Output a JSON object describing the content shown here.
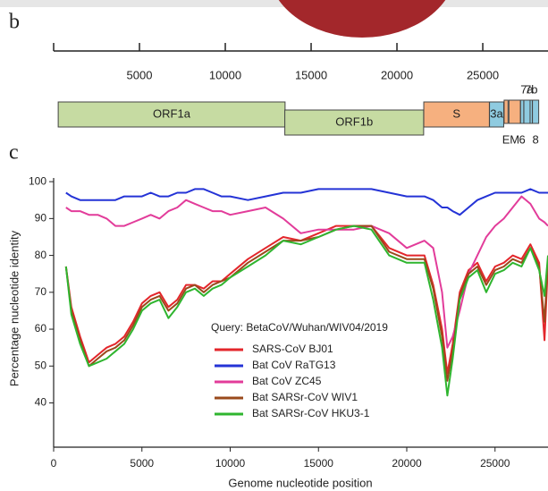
{
  "chart_data": [
    {
      "type": "genome_map",
      "panel": "b",
      "xlim": [
        0,
        28800
      ],
      "xticks": [
        5000,
        10000,
        15000,
        20000,
        25000
      ],
      "genes": [
        {
          "name": "ORF1a",
          "start": 266,
          "end": 13483,
          "color": "#c6dba2"
        },
        {
          "name": "ORF1b",
          "start": 13468,
          "end": 21555,
          "color": "#c6dba2"
        },
        {
          "name": "S",
          "start": 21563,
          "end": 25384,
          "color": "#f6b07f"
        },
        {
          "name": "3a",
          "start": 25393,
          "end": 26220,
          "color": "#8fcbe0"
        },
        {
          "name": "E",
          "start": 26245,
          "end": 26472,
          "color": "#f6b07f"
        },
        {
          "name": "M",
          "start": 26523,
          "end": 27191,
          "color": "#f6b07f"
        },
        {
          "name": "6",
          "start": 27202,
          "end": 27387,
          "color": "#8fcbe0"
        },
        {
          "name": "7a",
          "start": 27394,
          "end": 27759,
          "color": "#8fcbe0"
        },
        {
          "name": "7b",
          "start": 27756,
          "end": 27887,
          "color": "#8fcbe0"
        },
        {
          "name": "8",
          "start": 27894,
          "end": 28259,
          "color": "#8fcbe0"
        }
      ]
    },
    {
      "type": "line",
      "panel": "c",
      "x_label": "Genome nucleotide position",
      "y_label": "Percentage nucleotide identity",
      "legend_title": "Query: BetaCoV/Wuhan/WIV04/2019",
      "xlim": [
        0,
        28000
      ],
      "ylim": [
        28,
        101
      ],
      "xticks": [
        0,
        5000,
        10000,
        15000,
        20000,
        25000
      ],
      "yticks": [
        40,
        50,
        60,
        70,
        80,
        90,
        100
      ],
      "x": [
        700,
        1000,
        1500,
        2000,
        2500,
        3000,
        3500,
        4000,
        4500,
        5000,
        5500,
        6000,
        6500,
        7000,
        7500,
        8000,
        8500,
        9000,
        9500,
        10000,
        11000,
        12000,
        13000,
        14000,
        15000,
        16000,
        17000,
        18000,
        19000,
        20000,
        21000,
        21500,
        22000,
        22300,
        22600,
        23000,
        23500,
        24000,
        24500,
        25000,
        25500,
        26000,
        26500,
        27000,
        27500,
        27800,
        28000
      ],
      "series": [
        {
          "name": "SARS-CoV BJ01",
          "color": "#e3262b",
          "values": [
            77,
            66,
            58,
            51,
            53,
            55,
            56,
            58,
            62,
            67,
            69,
            70,
            66,
            68,
            72,
            72,
            71,
            73,
            73,
            75,
            79,
            82,
            85,
            84,
            86,
            88,
            88,
            88,
            82,
            80,
            80,
            72,
            60,
            48,
            56,
            70,
            76,
            78,
            73,
            77,
            78,
            80,
            79,
            83,
            78,
            57,
            78
          ]
        },
        {
          "name": "Bat CoV RaTG13",
          "color": "#2433d6",
          "values": [
            97,
            96,
            95,
            95,
            95,
            95,
            95,
            96,
            96,
            96,
            97,
            96,
            96,
            97,
            97,
            98,
            98,
            97,
            96,
            96,
            95,
            96,
            97,
            97,
            98,
            98,
            98,
            98,
            97,
            96,
            96,
            95,
            93,
            93,
            92,
            91,
            93,
            95,
            96,
            97,
            97,
            97,
            97,
            98,
            97,
            97,
            97
          ]
        },
        {
          "name": "Bat CoV ZC45",
          "color": "#e23c9a",
          "values": [
            93,
            92,
            92,
            91,
            91,
            90,
            88,
            88,
            89,
            90,
            91,
            90,
            92,
            93,
            95,
            94,
            93,
            92,
            92,
            91,
            92,
            93,
            90,
            86,
            87,
            87,
            87,
            88,
            86,
            82,
            84,
            82,
            70,
            55,
            58,
            65,
            75,
            80,
            85,
            88,
            90,
            93,
            96,
            94,
            90,
            89,
            88
          ]
        },
        {
          "name": "Bat SARSr-CoV WIV1",
          "color": "#9a4a1c",
          "values": [
            77,
            65,
            57,
            50,
            52,
            54,
            55,
            57,
            61,
            66,
            68,
            69,
            65,
            67,
            71,
            72,
            70,
            72,
            73,
            74,
            78,
            81,
            84,
            84,
            85,
            87,
            88,
            88,
            81,
            79,
            79,
            71,
            58,
            46,
            54,
            69,
            75,
            77,
            72,
            76,
            77,
            79,
            78,
            82,
            77,
            62,
            79
          ]
        },
        {
          "name": "Bat SARSr-CoV HKU3-1",
          "color": "#2fb52f",
          "values": [
            77,
            64,
            56,
            50,
            51,
            52,
            54,
            56,
            60,
            65,
            67,
            68,
            63,
            66,
            70,
            71,
            69,
            71,
            72,
            74,
            77,
            80,
            84,
            83,
            85,
            87,
            88,
            87,
            80,
            78,
            78,
            68,
            55,
            42,
            52,
            68,
            74,
            76,
            70,
            75,
            76,
            78,
            77,
            82,
            76,
            69,
            80
          ]
        }
      ]
    }
  ]
}
